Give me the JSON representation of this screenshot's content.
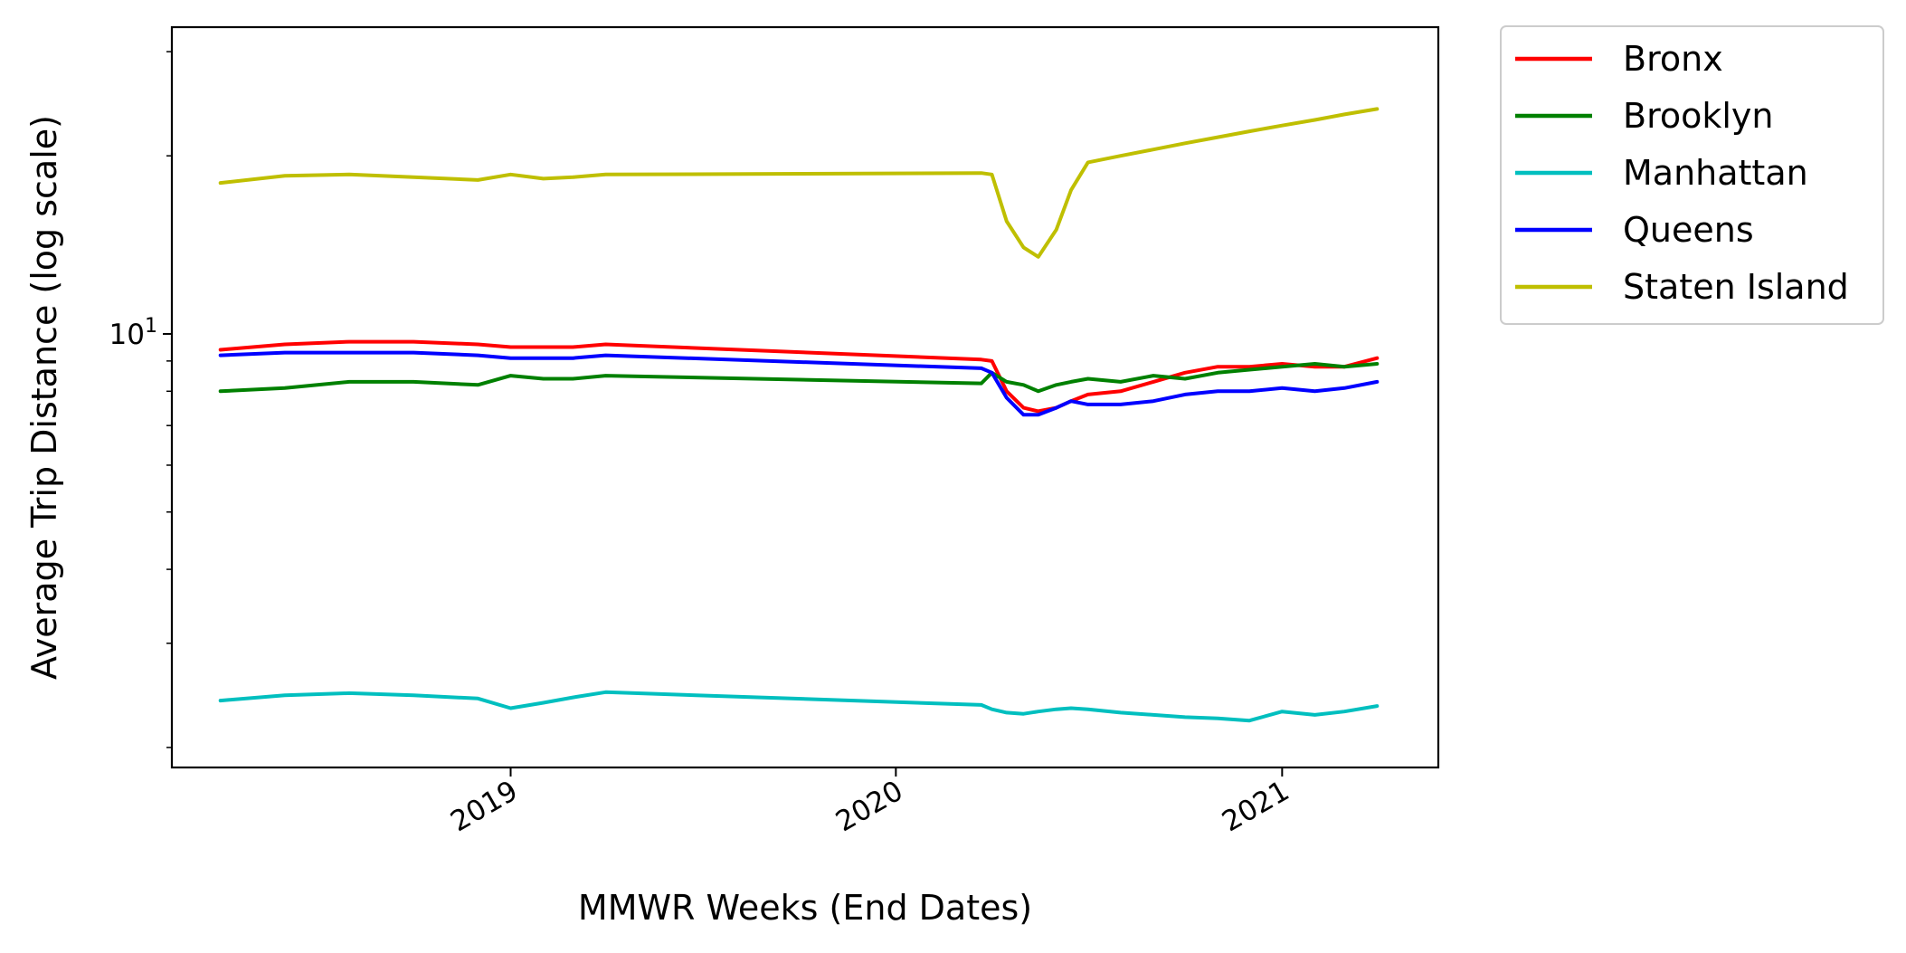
{
  "chart_data": {
    "type": "line",
    "title": "",
    "xlabel": "MMWR Weeks (End Dates)",
    "ylabel": "Average Trip Distance (log scale)",
    "y_scale": "log",
    "ylim": [
      1.85,
      33
    ],
    "xlim": [
      "2018-02-14",
      "2021-05-29"
    ],
    "grid": false,
    "legend_position": "outside-top-right",
    "x_ticks": [
      {
        "date": "2019-01-01",
        "label": "2019"
      },
      {
        "date": "2020-01-01",
        "label": "2020"
      },
      {
        "date": "2021-01-01",
        "label": "2021"
      }
    ],
    "y_ticks": [
      {
        "value": 10,
        "base": "10",
        "exp": "1"
      }
    ],
    "x": [
      "2018-04-01",
      "2018-06-01",
      "2018-08-01",
      "2018-10-01",
      "2018-12-01",
      "2019-01-01",
      "2019-02-01",
      "2019-03-01",
      "2019-04-01",
      "2020-03-22",
      "2020-04-01",
      "2020-04-15",
      "2020-05-01",
      "2020-05-15",
      "2020-06-01",
      "2020-06-15",
      "2020-07-01",
      "2020-08-01",
      "2020-09-01",
      "2020-10-01",
      "2020-11-01",
      "2020-12-01",
      "2021-01-01",
      "2021-02-01",
      "2021-03-01",
      "2021-04-01"
    ],
    "series": [
      {
        "name": "Bronx",
        "color": "#ff0000",
        "values": [
          9.4,
          9.6,
          9.7,
          9.7,
          9.6,
          9.5,
          9.5,
          9.5,
          9.6,
          9.05,
          9.0,
          8.0,
          7.5,
          7.4,
          7.5,
          7.7,
          7.9,
          8.0,
          8.3,
          8.6,
          8.8,
          8.8,
          8.9,
          8.8,
          8.8,
          9.1
        ]
      },
      {
        "name": "Brooklyn",
        "color": "#008000",
        "values": [
          8.0,
          8.1,
          8.3,
          8.3,
          8.2,
          8.5,
          8.4,
          8.4,
          8.5,
          8.25,
          8.6,
          8.3,
          8.2,
          8.0,
          8.2,
          8.3,
          8.4,
          8.3,
          8.5,
          8.4,
          8.6,
          8.7,
          8.8,
          8.9,
          8.8,
          8.9
        ]
      },
      {
        "name": "Manhattan",
        "color": "#00bfbf",
        "values": [
          2.4,
          2.45,
          2.47,
          2.45,
          2.42,
          2.33,
          2.38,
          2.43,
          2.48,
          2.36,
          2.32,
          2.29,
          2.28,
          2.3,
          2.32,
          2.33,
          2.32,
          2.29,
          2.27,
          2.25,
          2.24,
          2.22,
          2.3,
          2.27,
          2.3,
          2.35
        ]
      },
      {
        "name": "Queens",
        "color": "#0000ff",
        "values": [
          9.2,
          9.3,
          9.3,
          9.3,
          9.2,
          9.1,
          9.1,
          9.1,
          9.2,
          8.75,
          8.6,
          7.8,
          7.3,
          7.3,
          7.5,
          7.7,
          7.6,
          7.6,
          7.7,
          7.9,
          8.0,
          8.0,
          8.1,
          8.0,
          8.1,
          8.3
        ]
      },
      {
        "name": "Staten Island",
        "color": "#bfbf00",
        "values": [
          18.0,
          18.5,
          18.6,
          18.4,
          18.2,
          18.6,
          18.3,
          18.4,
          18.6,
          18.7,
          18.6,
          15.5,
          14.0,
          13.5,
          15.0,
          17.5,
          19.5,
          20.0,
          20.5,
          21.0,
          21.5,
          22.0,
          22.5,
          23.0,
          23.5,
          24.0
        ]
      }
    ]
  }
}
